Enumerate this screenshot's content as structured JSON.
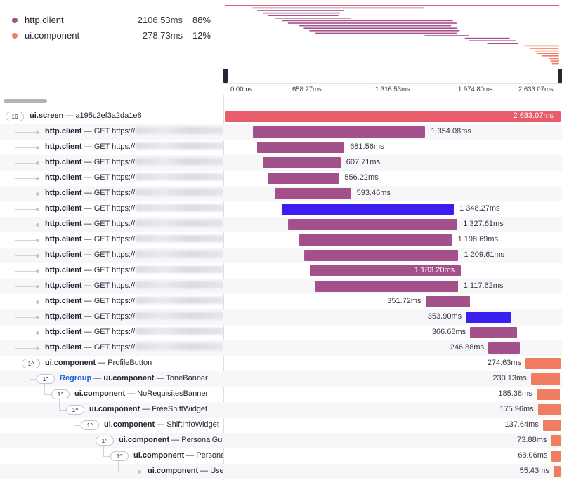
{
  "legend": [
    {
      "name": "http.client",
      "duration": "2106.53ms",
      "percent": "88%",
      "color": "#a4508b"
    },
    {
      "name": "ui.component",
      "duration": "278.73ms",
      "percent": "12%",
      "color": "#f07d5f"
    }
  ],
  "axis_ticks": [
    "0.00ms",
    "658.27ms",
    "1 316.53ms",
    "1 974.80ms",
    "2 633.07ms"
  ],
  "colors": {
    "root": "#e85d6b",
    "http": "#a4508b",
    "ui": "#f07d5f",
    "selected": "#3a1ff0"
  },
  "rows": [
    {
      "op": "ui.screen",
      "desc": "a195c2ef3a2da1e8",
      "badge": "16",
      "duration": "2 633.07ms",
      "start": 0,
      "dur": 2633.07,
      "kind": "root"
    },
    {
      "op": "http.client",
      "desc": "GET https://",
      "duration": "1 354.08ms",
      "start": 218,
      "dur": 1354.08,
      "kind": "http"
    },
    {
      "op": "http.client",
      "desc": "GET https://",
      "duration": "681.56ms",
      "start": 256,
      "dur": 681.56,
      "kind": "http"
    },
    {
      "op": "http.client",
      "desc": "GET https://",
      "duration": "607.71ms",
      "start": 300,
      "dur": 607.71,
      "kind": "http"
    },
    {
      "op": "http.client",
      "desc": "GET https://",
      "duration": "556.22ms",
      "start": 338,
      "dur": 556.22,
      "kind": "http"
    },
    {
      "op": "http.client",
      "desc": "GET https://",
      "duration": "593.46ms",
      "start": 396,
      "dur": 593.46,
      "kind": "http"
    },
    {
      "op": "http.client",
      "desc": "GET https://",
      "duration": "1 348.27ms",
      "start": 448,
      "dur": 1348.27,
      "kind": "selected"
    },
    {
      "op": "http.client",
      "desc": "GET https://",
      "duration": "1 327.61ms",
      "start": 497,
      "dur": 1327.61,
      "kind": "http"
    },
    {
      "op": "http.client",
      "desc": "GET https://",
      "duration": "1 198.69ms",
      "start": 584,
      "dur": 1198.69,
      "kind": "http"
    },
    {
      "op": "http.client",
      "desc": "GET https://",
      "duration": "1 209.61ms",
      "start": 622,
      "dur": 1209.61,
      "kind": "http"
    },
    {
      "op": "http.client",
      "desc": "GET https://",
      "duration": "1 183.20ms",
      "start": 666,
      "dur": 1183.2,
      "kind": "http",
      "label_inside": true
    },
    {
      "op": "http.client",
      "desc": "GET https://",
      "duration": "1 117.62ms",
      "start": 710,
      "dur": 1117.62,
      "kind": "http"
    },
    {
      "op": "http.client",
      "desc": "GET https://",
      "duration": "351.72ms",
      "start": 1573,
      "dur": 351.72,
      "kind": "http",
      "label_left": true
    },
    {
      "op": "http.client",
      "desc": "GET https://",
      "duration": "353.90ms",
      "start": 1890,
      "dur": 353.9,
      "kind": "selected",
      "label_left": true
    },
    {
      "op": "http.client",
      "desc": "GET https://",
      "duration": "366.68ms",
      "start": 1923,
      "dur": 366.68,
      "kind": "http",
      "label_left": true
    },
    {
      "op": "http.client",
      "desc": "GET https://",
      "duration": "246.88ms",
      "start": 2066,
      "dur": 246.88,
      "kind": "http",
      "label_left": true
    },
    {
      "op": "ui.component",
      "desc": "ProfileButton",
      "badge": "1^",
      "duration": "274.63ms",
      "start": 2358,
      "dur": 274.63,
      "kind": "ui",
      "label_left": true
    },
    {
      "op": "ui.component",
      "desc": "ToneBanner",
      "prefix": "Regroup",
      "badge": "1^",
      "duration": "230.13ms",
      "start": 2400,
      "dur": 230.13,
      "kind": "ui",
      "label_left": true
    },
    {
      "op": "ui.component",
      "desc": "NoRequisitesBanner",
      "badge": "1^",
      "duration": "185.38ms",
      "start": 2444,
      "dur": 185.38,
      "kind": "ui",
      "label_left": true
    },
    {
      "op": "ui.component",
      "desc": "FreeShiftWidget",
      "badge": "1^",
      "duration": "175.96ms",
      "start": 2455,
      "dur": 175.96,
      "kind": "ui",
      "label_left": true
    },
    {
      "op": "ui.component",
      "desc": "ShiftInfoWidget",
      "badge": "1^",
      "duration": "137.64ms",
      "start": 2494,
      "dur": 137.64,
      "kind": "ui",
      "label_left": true
    },
    {
      "op": "ui.component",
      "desc": "PersonalGua",
      "badge": "1^",
      "duration": "73.88ms",
      "start": 2558,
      "dur": 73.88,
      "kind": "ui",
      "label_left": true
    },
    {
      "op": "ui.component",
      "desc": "Persona",
      "badge": "1^",
      "duration": "68.06ms",
      "start": 2564,
      "dur": 68.06,
      "kind": "ui",
      "label_left": true
    },
    {
      "op": "ui.component",
      "desc": "Use",
      "duration": "55.43ms",
      "start": 2577,
      "dur": 55.43,
      "kind": "ui",
      "label_left": true
    }
  ]
}
